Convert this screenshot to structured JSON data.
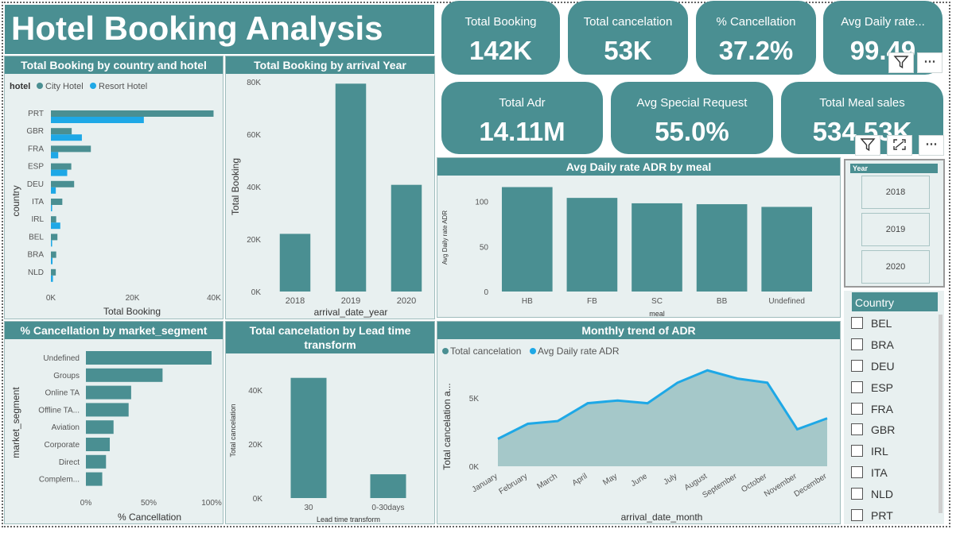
{
  "dashboard_title": "Hotel Booking Analysis",
  "kpis": [
    {
      "label": "Total Booking",
      "value": "142K"
    },
    {
      "label": "Total cancelation",
      "value": "53K"
    },
    {
      "label": "% Cancellation",
      "value": "37.2%"
    },
    {
      "label": "Avg Daily rate...",
      "value": "99.49"
    },
    {
      "label": "Total Adr",
      "value": "14.11M"
    },
    {
      "label": "Avg Special Request",
      "value": "55.0%"
    },
    {
      "label": "Total Meal sales",
      "value": "534.53K"
    }
  ],
  "colors": {
    "teal": "#4a8f92",
    "resort": "#1ea8e6",
    "panel_bg": "#e8f0f0"
  },
  "icons": [
    "filter-icon",
    "more-options-icon",
    "focus-mode-icon"
  ],
  "panels": {
    "country": "Total Booking by country and hotel",
    "year": "Total Booking by arrival Year",
    "meal": "Avg Daily rate ADR by meal",
    "segment": "% Cancellation by market_segment",
    "lead": "Total cancelation by Lead time transform",
    "monthly": "Monthly trend of ADR"
  },
  "chart_data": [
    {
      "id": "country",
      "type": "bar",
      "orientation": "horizontal",
      "title": "Total Booking by country and hotel",
      "legend_title": "hotel",
      "categories": [
        "PRT",
        "GBR",
        "FRA",
        "ESP",
        "DEU",
        "ITA",
        "IRL",
        "BEL",
        "BRA",
        "NLD"
      ],
      "series": [
        {
          "name": "City Hotel",
          "values": [
            39900,
            5100,
            9800,
            5000,
            5700,
            2800,
            1300,
            1600,
            1300,
            1200
          ]
        },
        {
          "name": "Resort Hotel",
          "values": [
            22800,
            7600,
            1800,
            4000,
            1200,
            300,
            2300,
            300,
            400,
            500
          ]
        }
      ],
      "xlabel": "Total Booking",
      "ylabel": "country",
      "xlim": [
        0,
        40000
      ],
      "xticks": [
        "0K",
        "20K",
        "40K"
      ]
    },
    {
      "id": "year",
      "type": "bar",
      "title": "Total Booking by arrival Year",
      "categories": [
        "2018",
        "2019",
        "2020"
      ],
      "values": [
        22000,
        79300,
        40700
      ],
      "xlabel": "arrival_date_year",
      "ylabel": "Total Booking",
      "ylim": [
        0,
        80000
      ],
      "yticks": [
        "0K",
        "20K",
        "40K",
        "60K",
        "80K"
      ]
    },
    {
      "id": "meal",
      "type": "bar",
      "title": "Avg Daily rate ADR by meal",
      "categories": [
        "HB",
        "FB",
        "SC",
        "BB",
        "Undefined"
      ],
      "values": [
        116,
        104,
        98,
        97,
        94
      ],
      "xlabel": "meal",
      "ylabel": "Avg Daily rate ADR",
      "ylim": [
        0,
        120
      ],
      "yticks": [
        "0",
        "50",
        "100"
      ]
    },
    {
      "id": "segment",
      "type": "bar",
      "orientation": "horizontal",
      "title": "% Cancellation by market_segment",
      "categories": [
        "Undefined",
        "Groups",
        "Online TA",
        "Offline TA...",
        "Aviation",
        "Corporate",
        "Direct",
        "Complem..."
      ],
      "values": [
        100,
        61,
        36,
        34,
        22,
        19,
        16,
        13
      ],
      "xlabel": "% Cancellation",
      "ylabel": "market_segment",
      "xlim": [
        0,
        100
      ],
      "xticks": [
        "0%",
        "50%",
        "100%"
      ]
    },
    {
      "id": "lead",
      "type": "bar",
      "title": "Total cancelation by Lead time transform",
      "categories": [
        "30",
        "0-30days"
      ],
      "values": [
        44500,
        8800
      ],
      "xlabel": "Lead time transform",
      "ylabel": "Total cancelation",
      "ylim": [
        0,
        50000
      ],
      "yticks": [
        "0K",
        "20K",
        "40K"
      ]
    },
    {
      "id": "monthly",
      "type": "area",
      "title": "Monthly trend of ADR",
      "categories": [
        "January",
        "February",
        "March",
        "April",
        "May",
        "June",
        "July",
        "August",
        "September",
        "October",
        "November",
        "December"
      ],
      "series": [
        {
          "name": "Total cancelation",
          "values": [
            2000,
            3100,
            3300,
            4600,
            4800,
            4600,
            6100,
            7000,
            6400,
            6100,
            2700,
            3500
          ]
        },
        {
          "name": "Avg Daily rate ADR",
          "values": [
            2000,
            3100,
            3300,
            4600,
            4800,
            4600,
            6100,
            7000,
            6400,
            6100,
            2700,
            3500
          ]
        }
      ],
      "xlabel": "arrival_date_month",
      "ylabel": "Total cancelation a...",
      "ylim": [
        0,
        8000
      ],
      "yticks": [
        "0K",
        "5K"
      ]
    }
  ],
  "year_slicer": {
    "title": "Year",
    "options": [
      "2018",
      "2019",
      "2020"
    ]
  },
  "country_slicer": {
    "title": "Country",
    "options": [
      "BEL",
      "BRA",
      "DEU",
      "ESP",
      "FRA",
      "GBR",
      "IRL",
      "ITA",
      "NLD",
      "PRT"
    ]
  }
}
